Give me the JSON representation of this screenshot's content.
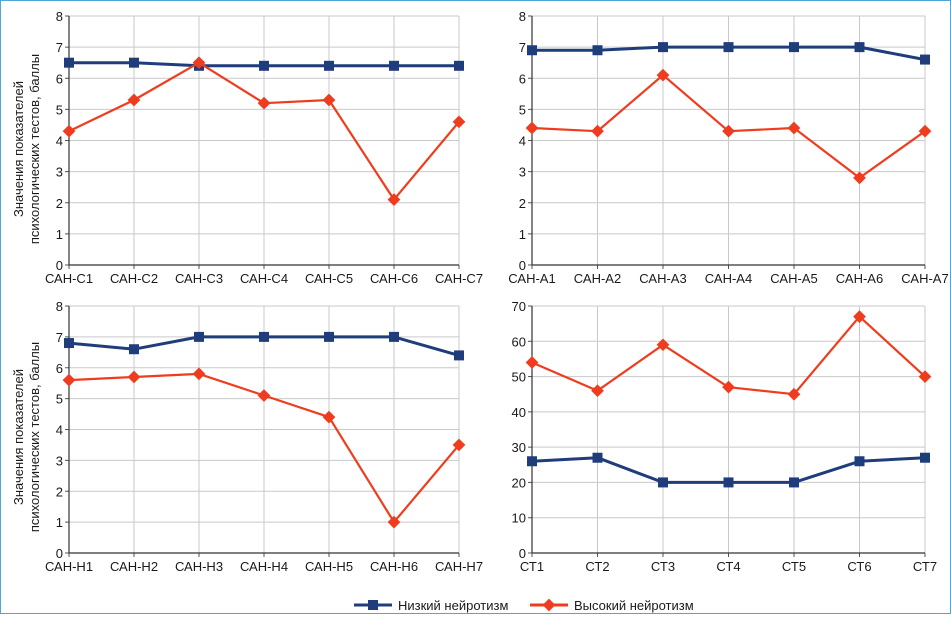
{
  "y_axis_label_line1": "Значения показателей",
  "y_axis_label_line2": "психологических тестов, баллы",
  "legend": {
    "entries": [
      {
        "label": "Низкий нейротизм",
        "color": "#1f3d7a",
        "marker": "square"
      },
      {
        "label": "Высокий нейротизм",
        "color": "#f03c1e",
        "marker": "diamond"
      }
    ]
  },
  "chart_data": [
    {
      "type": "line",
      "categories": [
        "САН-С1",
        "САН-С2",
        "САН-С3",
        "САН-С4",
        "САН-С5",
        "САН-С6",
        "САН-С7"
      ],
      "ylim": [
        0,
        8
      ],
      "yticks": [
        0,
        1,
        2,
        3,
        4,
        5,
        6,
        7,
        8
      ],
      "ylabel": "Значения показателей психологических тестов, баллы",
      "grid": true,
      "series": [
        {
          "name": "Низкий нейротизм",
          "color": "#1f3d7a",
          "marker": "square",
          "values": [
            6.5,
            6.5,
            6.4,
            6.4,
            6.4,
            6.4,
            6.4
          ]
        },
        {
          "name": "Высокий нейротизм",
          "color": "#f03c1e",
          "marker": "diamond",
          "values": [
            4.3,
            5.3,
            6.5,
            5.2,
            5.3,
            2.1,
            4.6
          ]
        }
      ]
    },
    {
      "type": "line",
      "categories": [
        "САН-А1",
        "САН-А2",
        "САН-А3",
        "САН-А4",
        "САН-А5",
        "САН-А6",
        "САН-А7"
      ],
      "ylim": [
        0,
        8
      ],
      "yticks": [
        0,
        1,
        2,
        3,
        4,
        5,
        6,
        7,
        8
      ],
      "grid": true,
      "series": [
        {
          "name": "Низкий нейротизм",
          "color": "#1f3d7a",
          "marker": "square",
          "values": [
            6.9,
            6.9,
            7.0,
            7.0,
            7.0,
            7.0,
            6.6
          ]
        },
        {
          "name": "Высокий нейротизм",
          "color": "#f03c1e",
          "marker": "diamond",
          "values": [
            4.4,
            4.3,
            6.1,
            4.3,
            4.4,
            2.8,
            4.3
          ]
        }
      ]
    },
    {
      "type": "line",
      "categories": [
        "САН-Н1",
        "САН-Н2",
        "САН-Н3",
        "САН-Н4",
        "САН-Н5",
        "САН-Н6",
        "САН-Н7"
      ],
      "ylim": [
        0,
        8
      ],
      "yticks": [
        0,
        1,
        2,
        3,
        4,
        5,
        6,
        7,
        8
      ],
      "ylabel": "Значения показателей психологических тестов, баллы",
      "grid": true,
      "series": [
        {
          "name": "Низкий нейротизм",
          "color": "#1f3d7a",
          "marker": "square",
          "values": [
            6.8,
            6.6,
            7.0,
            7.0,
            7.0,
            7.0,
            6.4
          ]
        },
        {
          "name": "Высокий нейротизм",
          "color": "#f03c1e",
          "marker": "diamond",
          "values": [
            5.6,
            5.7,
            5.8,
            5.1,
            4.4,
            1.0,
            3.5
          ]
        }
      ]
    },
    {
      "type": "line",
      "categories": [
        "СТ1",
        "СТ2",
        "СТ3",
        "СТ4",
        "СТ5",
        "СТ6",
        "СТ7"
      ],
      "ylim": [
        0,
        70
      ],
      "yticks": [
        0,
        10,
        20,
        30,
        40,
        50,
        60,
        70
      ],
      "grid": true,
      "series": [
        {
          "name": "Низкий нейротизм",
          "color": "#1f3d7a",
          "marker": "square",
          "values": [
            26,
            27,
            20,
            20,
            20,
            26,
            27
          ]
        },
        {
          "name": "Высокий нейротизм",
          "color": "#f03c1e",
          "marker": "diamond",
          "values": [
            54,
            46,
            59,
            47,
            45,
            67,
            50
          ]
        }
      ]
    }
  ]
}
